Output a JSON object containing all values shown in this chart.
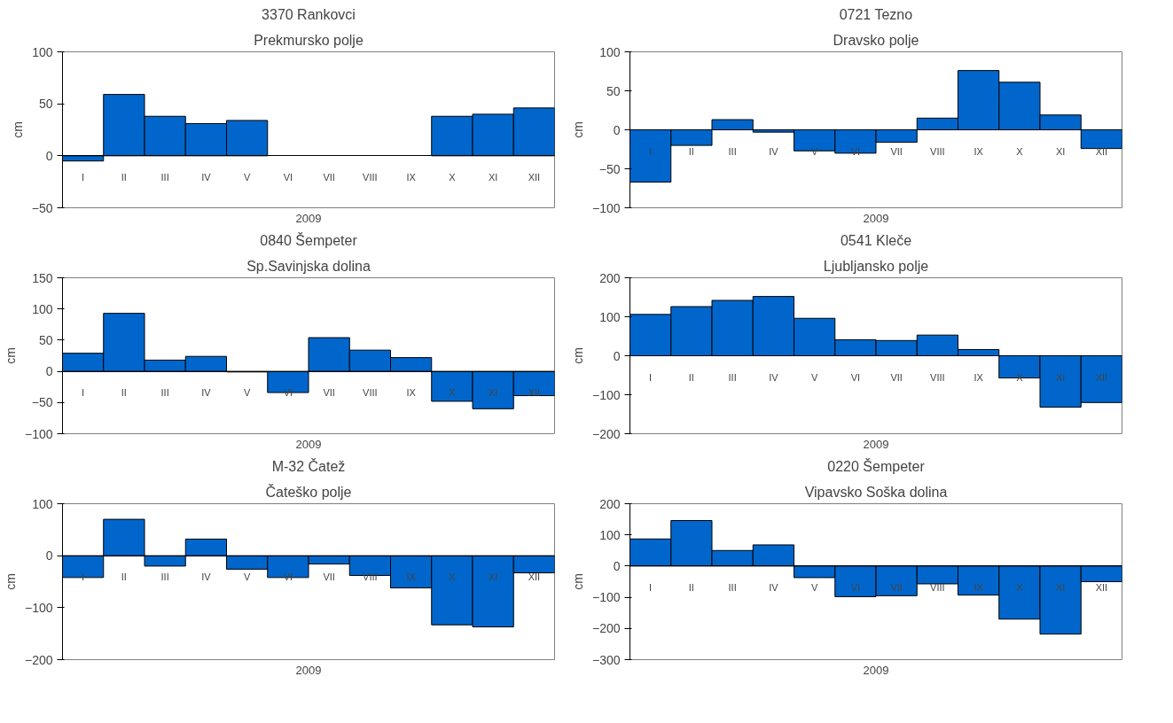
{
  "chart_data": [
    {
      "type": "bar",
      "title": "3370 Rankovci",
      "subtitle": "Prekmursko polje",
      "xlabel": "2009",
      "ylabel": "cm",
      "categories": [
        "I",
        "II",
        "III",
        "IV",
        "V",
        "VI",
        "VII",
        "VIII",
        "IX",
        "X",
        "XI",
        "XII"
      ],
      "values": [
        -5,
        59,
        38,
        31,
        34,
        null,
        null,
        null,
        null,
        38,
        40,
        46
      ],
      "color": "#0066cc",
      "ylim": [
        -50,
        100
      ],
      "yticks": [
        -50,
        0,
        50,
        100
      ]
    },
    {
      "type": "bar",
      "title": "0721 Tezno",
      "subtitle": "Dravsko polje",
      "xlabel": "2009",
      "ylabel": "cm",
      "categories": [
        "I",
        "II",
        "III",
        "IV",
        "V",
        "VI",
        "VII",
        "VIII",
        "IX",
        "X",
        "XI",
        "XII"
      ],
      "values": [
        -67,
        -20,
        13,
        -3,
        -27,
        -30,
        -16,
        15,
        76,
        61,
        19,
        -24
      ],
      "color": "#0066cc",
      "ylim": [
        -100,
        100
      ],
      "yticks": [
        -100,
        -50,
        0,
        50,
        100
      ]
    },
    {
      "type": "bar",
      "title": "0840 Šempeter",
      "subtitle": "Sp.Savinjska dolina",
      "xlabel": "2009",
      "ylabel": "cm",
      "categories": [
        "I",
        "II",
        "III",
        "IV",
        "V",
        "VI",
        "VII",
        "VIII",
        "IX",
        "X",
        "XI",
        "XII"
      ],
      "values": [
        29,
        93,
        18,
        24,
        -1,
        -34,
        54,
        34,
        22,
        -48,
        -60,
        -39
      ],
      "color": "#0066cc",
      "ylim": [
        -100,
        150
      ],
      "yticks": [
        -100,
        -50,
        0,
        50,
        100,
        150
      ]
    },
    {
      "type": "bar",
      "title": "0541 Kleče",
      "subtitle": "Ljubljansko polje",
      "xlabel": "2009",
      "ylabel": "cm",
      "categories": [
        "I",
        "II",
        "III",
        "IV",
        "V",
        "VI",
        "VII",
        "VIII",
        "IX",
        "X",
        "XI",
        "XII"
      ],
      "values": [
        106,
        126,
        142,
        152,
        96,
        41,
        39,
        53,
        16,
        -57,
        -132,
        -120
      ],
      "color": "#0066cc",
      "ylim": [
        -200,
        200
      ],
      "yticks": [
        -200,
        -100,
        0,
        100,
        200
      ]
    },
    {
      "type": "bar",
      "title": "M-32 Čatež",
      "subtitle": "Čateško polje",
      "xlabel": "2009",
      "ylabel": "cm",
      "categories": [
        "I",
        "II",
        "III",
        "IV",
        "V",
        "VI",
        "VII",
        "VIII",
        "IX",
        "X",
        "XI",
        "XII"
      ],
      "values": [
        -42,
        70,
        -20,
        32,
        -26,
        -42,
        -16,
        -38,
        -62,
        -133,
        -137,
        -33
      ],
      "color": "#0066cc",
      "ylim": [
        -200,
        100
      ],
      "yticks": [
        -200,
        -100,
        0,
        100
      ]
    },
    {
      "type": "bar",
      "title": "0220 Šempeter",
      "subtitle": "Vipavsko Soška dolina",
      "xlabel": "2009",
      "ylabel": "cm",
      "categories": [
        "I",
        "II",
        "III",
        "IV",
        "V",
        "VI",
        "VII",
        "VIII",
        "IX",
        "X",
        "XI",
        "XII"
      ],
      "values": [
        87,
        146,
        50,
        68,
        -37,
        -98,
        -95,
        -57,
        -93,
        -170,
        -218,
        -50
      ],
      "color": "#0066cc",
      "ylim": [
        -300,
        200
      ],
      "yticks": [
        -300,
        -200,
        -100,
        0,
        100,
        200
      ]
    }
  ]
}
